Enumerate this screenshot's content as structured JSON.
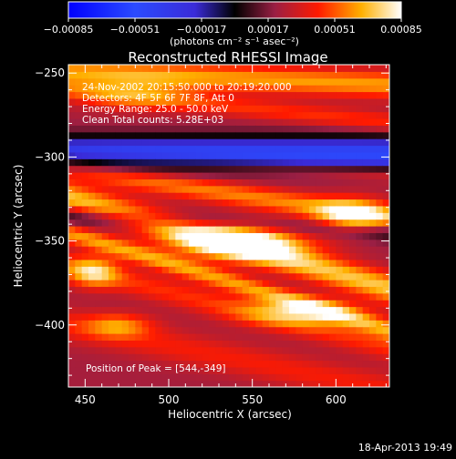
{
  "chart_data": {
    "type": "heatmap",
    "title": "Reconstructed RHESSI Image",
    "xlabel": "Heliocentric X (arcsec)",
    "ylabel": "Heliocentric Y (arcsec)",
    "xlim": [
      440,
      632
    ],
    "ylim": [
      -437,
      -245
    ],
    "x_ticks": [
      450,
      500,
      550,
      600
    ],
    "y_ticks": [
      -250,
      -300,
      -350,
      -400
    ],
    "colorbar": {
      "ticks": [
        -0.00085,
        -0.00051,
        -0.00017,
        0.00017,
        0.00051,
        0.00085
      ],
      "tick_labels": [
        "-0.00085",
        "-0.00051",
        "-0.00017",
        "0.00017",
        "0.00051",
        "0.00085"
      ],
      "range": [
        -0.00085,
        0.00085
      ],
      "unit_label": "(photons cm⁻² s⁻¹ asec⁻²)"
    },
    "annotations": [
      "24-Nov-2002 20:15:50.000 to 20:19:20.000",
      "Detectors: 4F 5F 6F 7F 8F, Att 0",
      "Energy Range: 25.0 - 50.0 keV",
      "Clean     Total counts: 5.28E+03"
    ],
    "peak_label": "Position of Peak = [544,-349]",
    "peak": [
      544,
      -349
    ],
    "footer": "18-Apr-2013 19:49",
    "bands": [
      {
        "y0": -253,
        "slope": -0.04,
        "amp": 0.45,
        "width": 8
      },
      {
        "y0": -270,
        "slope": -0.1,
        "amp": 0.25,
        "width": 6
      },
      {
        "y0": -298,
        "slope": 0.0,
        "amp": -0.85,
        "width": 10
      },
      {
        "y0": -305,
        "slope": -0.05,
        "amp": 0.25,
        "width": 5
      },
      {
        "y0": -322,
        "slope": -0.15,
        "amp": 0.4,
        "width": 7
      },
      {
        "y0": -352,
        "slope": -0.28,
        "amp": 0.55,
        "width": 9
      },
      {
        "y0": -340,
        "slope": -0.05,
        "amp": -0.3,
        "width": 6
      },
      {
        "y0": -375,
        "slope": -0.3,
        "amp": 0.45,
        "width": 6
      },
      {
        "y0": -390,
        "slope": -0.25,
        "amp": 0.25,
        "width": 8
      },
      {
        "y0": -420,
        "slope": -0.2,
        "amp": 0.2,
        "width": 10
      }
    ],
    "blobs": [
      {
        "x": 544,
        "y": -349,
        "amp": 0.75,
        "sx": 40,
        "sy": 11
      },
      {
        "x": 610,
        "y": -335,
        "amp": 0.55,
        "sx": 22,
        "sy": 10
      },
      {
        "x": 455,
        "y": -368,
        "amp": 0.45,
        "sx": 15,
        "sy": 9
      },
      {
        "x": 580,
        "y": -392,
        "amp": 0.45,
        "sx": 35,
        "sy": 8
      },
      {
        "x": 470,
        "y": -400,
        "amp": 0.35,
        "sx": 20,
        "sy": 7
      },
      {
        "x": 480,
        "y": -262,
        "amp": 0.25,
        "sx": 35,
        "sy": 10
      }
    ]
  }
}
